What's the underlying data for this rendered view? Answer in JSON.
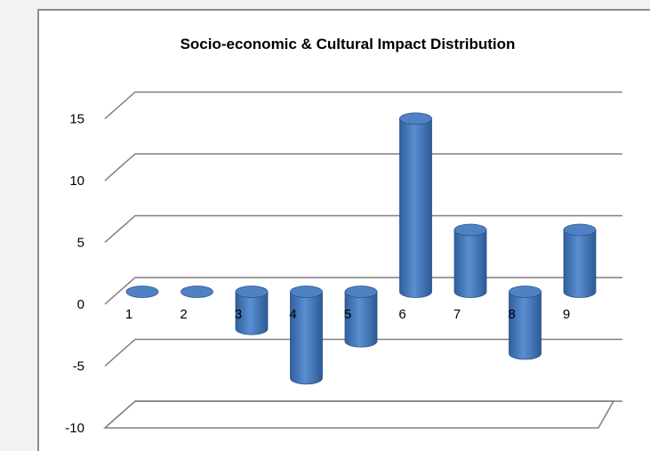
{
  "chart_data": {
    "type": "bar",
    "style": "3d-cylinder",
    "title": "Socio-economic & Cultural Impact Distribution",
    "xlabel": "",
    "ylabel": "",
    "categories": [
      "1",
      "2",
      "3",
      "4",
      "5",
      "6",
      "7",
      "8",
      "9"
    ],
    "values": [
      0,
      0,
      -3,
      -7,
      -4,
      14,
      5,
      -5,
      5
    ],
    "ylim": [
      -10,
      15
    ],
    "yticks": [
      "15",
      "10",
      "5",
      "0",
      "-5",
      "-10"
    ],
    "grid": true,
    "legend": "none",
    "bar_color": "#4a7ebf"
  }
}
